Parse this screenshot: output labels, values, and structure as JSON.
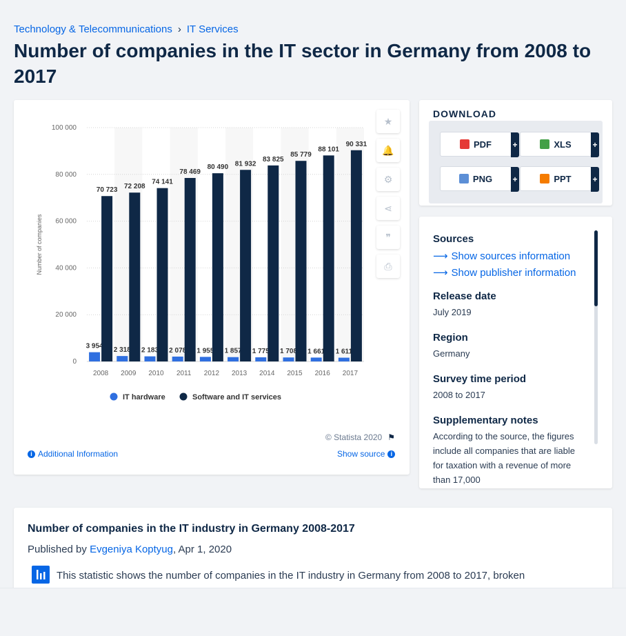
{
  "breadcrumb": {
    "category": "Technology & Telecommunications",
    "separator": "›",
    "subcategory": "IT Services"
  },
  "page": {
    "title": "Number of companies in the IT sector in Germany from 2008 to 2017"
  },
  "chart_card": {
    "copyright": "© Statista 2020",
    "additional_info": "Additional Information",
    "show_source": "Show source"
  },
  "download": {
    "title": "DOWNLOAD",
    "buttons": [
      {
        "label": "PDF",
        "color": "#e53935"
      },
      {
        "label": "XLS",
        "color": "#43a047"
      },
      {
        "label": "PNG",
        "color": "#5c8fd6"
      },
      {
        "label": "PPT",
        "color": "#f57c00"
      }
    ],
    "plus": "+"
  },
  "meta": {
    "sources_heading": "Sources",
    "show_sources": "Show sources information",
    "show_publisher": "Show publisher information",
    "release_heading": "Release date",
    "release_value": "July 2019",
    "region_heading": "Region",
    "region_value": "Germany",
    "survey_heading": "Survey time period",
    "survey_value": "2008 to 2017",
    "notes_heading": "Supplementary notes",
    "notes_value": "According to the source, the figures include all companies that are liable for taxation with a revenue of more than 17,000"
  },
  "description": {
    "title": "Number of companies in the IT industry in Germany 2008-2017",
    "published_prefix": "Published by",
    "author": "Evgeniya Koptyug",
    "date": ", Apr 1, 2020",
    "text": "This statistic shows the number of companies in the IT industry in Germany from 2008 to 2017, broken"
  },
  "chart_data": {
    "type": "bar",
    "categories": [
      "2008",
      "2009",
      "2010",
      "2011",
      "2012",
      "2013",
      "2014",
      "2015",
      "2016",
      "2017"
    ],
    "series": [
      {
        "name": "IT hardware",
        "color": "#2f6fe0",
        "values": [
          3954,
          2318,
          2183,
          2078,
          1955,
          1857,
          1775,
          1708,
          1661,
          1611
        ],
        "labels": [
          "3 954",
          "2 318",
          "2 183",
          "2 078",
          "1 955",
          "1 857",
          "1 775",
          "1 708",
          "1 661",
          "1 611"
        ]
      },
      {
        "name": "Software and IT services",
        "color": "#0f2846",
        "values": [
          70723,
          72208,
          74141,
          78469,
          80490,
          81932,
          83825,
          85779,
          88101,
          90331
        ],
        "labels": [
          "70 723",
          "72 208",
          "74 141",
          "78 469",
          "80 490",
          "81 932",
          "83 825",
          "85 779",
          "88 101",
          "90 331"
        ]
      }
    ],
    "ylabel": "Number of companies",
    "ylim": [
      0,
      100000
    ],
    "yticks": [
      0,
      20000,
      40000,
      60000,
      80000,
      100000
    ],
    "ytick_labels": [
      "0",
      "20 000",
      "40 000",
      "60 000",
      "80 000",
      "100 000"
    ],
    "grid": true,
    "legend_position": "bottom"
  }
}
